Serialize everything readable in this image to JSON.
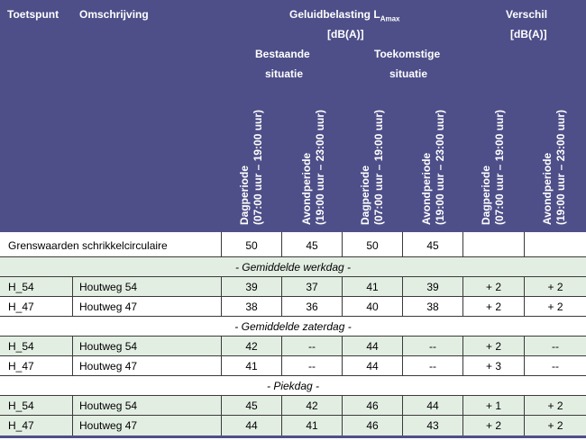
{
  "header": {
    "col_point": "Toetspunt",
    "col_desc": "Omschrijving",
    "noise_title_prefix": "Geluidbelasting L",
    "noise_title_sub": "Amax",
    "noise_unit": "[dB(A)]",
    "diff_title": "Verschil",
    "diff_unit": "[dB(A)]",
    "existing_line1": "Bestaande",
    "existing_line2": "situatie",
    "future_line1": "Toekomstige",
    "future_line2": "situatie",
    "period_day": "Dagperiode",
    "period_day_hours": "(07:00 uur – 19:00 uur)",
    "period_evening": "Avondperiode",
    "period_evening_hours": "(19:00 uur – 23:00 uur)"
  },
  "limits": {
    "label": "Grenswaarden schrikkelcirculaire",
    "values": [
      "50",
      "45",
      "50",
      "45",
      "",
      ""
    ]
  },
  "sections": [
    {
      "title": "- Gemiddelde werkdag -",
      "rows": [
        {
          "point": "H_54",
          "desc": "Houtweg 54",
          "values": [
            "39",
            "37",
            "41",
            "39",
            "+ 2",
            "+ 2"
          ]
        },
        {
          "point": "H_47",
          "desc": "Houtweg 47",
          "values": [
            "38",
            "36",
            "40",
            "38",
            "+ 2",
            "+ 2"
          ]
        }
      ]
    },
    {
      "title": "- Gemiddelde zaterdag -",
      "rows": [
        {
          "point": "H_54",
          "desc": "Houtweg 54",
          "values": [
            "42",
            "--",
            "44",
            "--",
            "+ 2",
            "--"
          ]
        },
        {
          "point": "H_47",
          "desc": "Houtweg 47",
          "values": [
            "41",
            "--",
            "44",
            "--",
            "+ 3",
            "--"
          ]
        }
      ]
    },
    {
      "title": "- Piekdag -",
      "rows": [
        {
          "point": "H_54",
          "desc": "Houtweg 54",
          "values": [
            "45",
            "42",
            "46",
            "44",
            "+ 1",
            "+ 2"
          ]
        },
        {
          "point": "H_47",
          "desc": "Houtweg 47",
          "values": [
            "44",
            "41",
            "46",
            "43",
            "+ 2",
            "+ 2"
          ]
        }
      ]
    }
  ]
}
